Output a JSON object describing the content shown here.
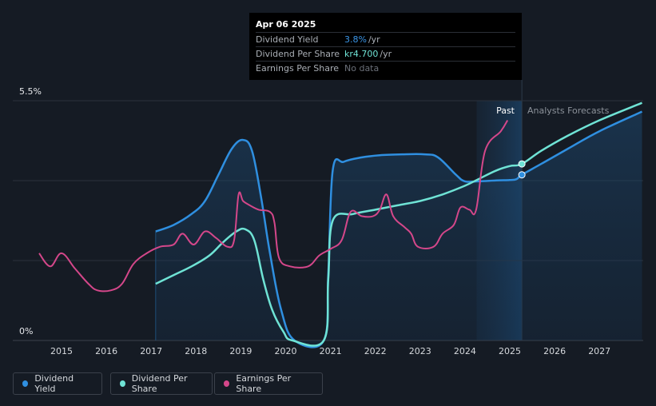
{
  "tooltip": {
    "date": "Apr 06 2025",
    "rows": [
      {
        "label": "Dividend Yield",
        "value": "3.8%",
        "unit": "/yr",
        "color": "#2f8fe0"
      },
      {
        "label": "Dividend Per Share",
        "value": "kr4.700",
        "unit": "/yr",
        "color": "#6fe3d5"
      },
      {
        "label": "Earnings Per Share",
        "value": "No data",
        "unit": "",
        "color": "#6b7079"
      }
    ]
  },
  "region_labels": {
    "past": "Past",
    "forecast": "Analysts Forecasts"
  },
  "legend": [
    {
      "label": "Dividend Yield",
      "color": "#2f8fe0"
    },
    {
      "label": "Dividend Per Share",
      "color": "#6fe3d5"
    },
    {
      "label": "Earnings Per Share",
      "color": "#d4478a"
    }
  ],
  "chart_data": {
    "type": "line",
    "title": "",
    "xlabel": "",
    "ylabel": "",
    "y_tick_labels": [
      "5.5%",
      "0%"
    ],
    "ylim": [
      0,
      5.5
    ],
    "xlim": [
      2014.0,
      2027.95
    ],
    "x_ticks": [
      2015,
      2016,
      2017,
      2018,
      2019,
      2020,
      2021,
      2022,
      2023,
      2024,
      2025,
      2026,
      2027
    ],
    "past_end": 2025.27,
    "forecast_band_start": 2024.26,
    "series": [
      {
        "name": "Dividend Yield",
        "color": "#2f8fe0",
        "unit": "%",
        "points": [
          [
            2017.1,
            2.5
          ],
          [
            2017.5,
            2.65
          ],
          [
            2017.9,
            2.9
          ],
          [
            2018.2,
            3.2
          ],
          [
            2018.5,
            3.8
          ],
          [
            2018.8,
            4.4
          ],
          [
            2019.05,
            4.6
          ],
          [
            2019.25,
            4.35
          ],
          [
            2019.45,
            3.3
          ],
          [
            2019.65,
            2.0
          ],
          [
            2019.9,
            0.7
          ],
          [
            2020.2,
            0.0
          ],
          [
            2020.85,
            0.0
          ],
          [
            2020.95,
            1.5
          ],
          [
            2021.05,
            3.9
          ],
          [
            2021.3,
            4.1
          ],
          [
            2021.7,
            4.2
          ],
          [
            2022.1,
            4.25
          ],
          [
            2022.6,
            4.27
          ],
          [
            2023.1,
            4.27
          ],
          [
            2023.4,
            4.2
          ],
          [
            2023.8,
            3.8
          ],
          [
            2024.0,
            3.65
          ],
          [
            2024.3,
            3.65
          ],
          [
            2024.7,
            3.67
          ],
          [
            2025.0,
            3.68
          ],
          [
            2025.15,
            3.7
          ],
          [
            2025.27,
            3.8
          ],
          [
            2025.7,
            4.05
          ],
          [
            2026.3,
            4.4
          ],
          [
            2027.0,
            4.8
          ],
          [
            2027.95,
            5.25
          ]
        ]
      },
      {
        "name": "Dividend Per Share",
        "color": "#6fe3d5",
        "unit": "%",
        "points": [
          [
            2017.1,
            1.3
          ],
          [
            2017.5,
            1.5
          ],
          [
            2017.9,
            1.7
          ],
          [
            2018.3,
            1.95
          ],
          [
            2018.6,
            2.25
          ],
          [
            2018.9,
            2.5
          ],
          [
            2019.1,
            2.55
          ],
          [
            2019.3,
            2.3
          ],
          [
            2019.5,
            1.4
          ],
          [
            2019.7,
            0.7
          ],
          [
            2019.95,
            0.2
          ],
          [
            2020.15,
            0.0
          ],
          [
            2020.85,
            0.0
          ],
          [
            2020.95,
            1.4
          ],
          [
            2021.05,
            2.75
          ],
          [
            2021.5,
            2.9
          ],
          [
            2022.0,
            3.0
          ],
          [
            2022.5,
            3.1
          ],
          [
            2023.0,
            3.2
          ],
          [
            2023.5,
            3.35
          ],
          [
            2024.0,
            3.55
          ],
          [
            2024.3,
            3.7
          ],
          [
            2024.7,
            3.9
          ],
          [
            2025.0,
            4.0
          ],
          [
            2025.27,
            4.05
          ],
          [
            2025.7,
            4.35
          ],
          [
            2026.3,
            4.7
          ],
          [
            2027.0,
            5.05
          ],
          [
            2027.95,
            5.45
          ]
        ]
      },
      {
        "name": "Earnings Per Share",
        "color": "#d4478a",
        "unit": "%",
        "points": [
          [
            2014.5,
            2.0
          ],
          [
            2014.75,
            1.7
          ],
          [
            2015.0,
            2.0
          ],
          [
            2015.3,
            1.65
          ],
          [
            2015.6,
            1.3
          ],
          [
            2015.8,
            1.15
          ],
          [
            2016.1,
            1.15
          ],
          [
            2016.35,
            1.3
          ],
          [
            2016.6,
            1.75
          ],
          [
            2016.9,
            2.0
          ],
          [
            2017.2,
            2.15
          ],
          [
            2017.5,
            2.2
          ],
          [
            2017.7,
            2.45
          ],
          [
            2017.95,
            2.2
          ],
          [
            2018.2,
            2.5
          ],
          [
            2018.45,
            2.35
          ],
          [
            2018.7,
            2.15
          ],
          [
            2018.85,
            2.3
          ],
          [
            2018.95,
            3.35
          ],
          [
            2019.05,
            3.2
          ],
          [
            2019.2,
            3.1
          ],
          [
            2019.4,
            3.0
          ],
          [
            2019.65,
            2.95
          ],
          [
            2019.75,
            2.7
          ],
          [
            2019.85,
            1.9
          ],
          [
            2020.1,
            1.7
          ],
          [
            2020.5,
            1.7
          ],
          [
            2020.75,
            1.95
          ],
          [
            2021.0,
            2.1
          ],
          [
            2021.25,
            2.3
          ],
          [
            2021.45,
            2.95
          ],
          [
            2021.7,
            2.85
          ],
          [
            2021.95,
            2.85
          ],
          [
            2022.1,
            3.0
          ],
          [
            2022.25,
            3.35
          ],
          [
            2022.4,
            2.85
          ],
          [
            2022.65,
            2.6
          ],
          [
            2022.8,
            2.45
          ],
          [
            2022.95,
            2.15
          ],
          [
            2023.3,
            2.15
          ],
          [
            2023.5,
            2.45
          ],
          [
            2023.75,
            2.65
          ],
          [
            2023.9,
            3.05
          ],
          [
            2024.1,
            3.0
          ],
          [
            2024.25,
            3.0
          ],
          [
            2024.45,
            4.35
          ],
          [
            2024.8,
            4.8
          ],
          [
            2024.95,
            5.05
          ]
        ]
      }
    ],
    "markers": [
      {
        "series": "Dividend Yield",
        "x": 2025.27,
        "y": 3.8
      },
      {
        "series": "Dividend Per Share",
        "x": 2025.27,
        "y": 4.05
      }
    ]
  }
}
